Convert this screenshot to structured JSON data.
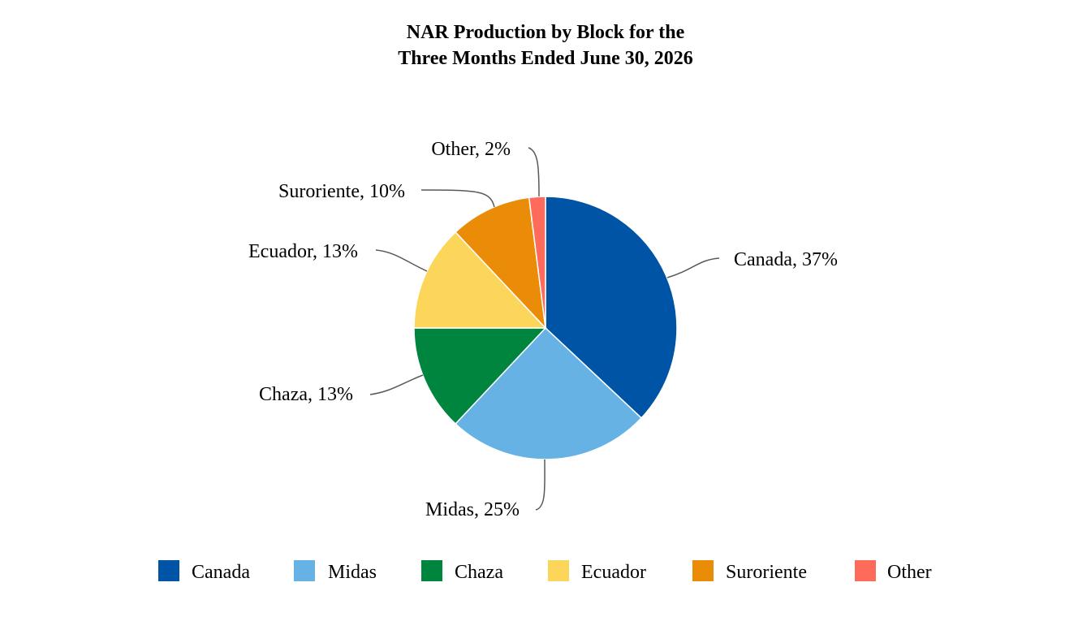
{
  "chart_data": {
    "type": "pie",
    "title": [
      "NAR Production by Block for the",
      "Three Months Ended June 30, 2026"
    ],
    "categories": [
      "Canada",
      "Midas",
      "Chaza",
      "Ecuador",
      "Suroriente",
      "Other"
    ],
    "values": [
      37,
      25,
      13,
      13,
      10,
      2
    ],
    "labels": [
      "Canada, 37%",
      "Midas, 25%",
      "Chaza, 13%",
      "Ecuador, 13%",
      "Suroriente, 10%",
      "Other, 2%"
    ],
    "colors": [
      "#0054A6",
      "#66B2E4",
      "#00853F",
      "#FCD65A",
      "#EB8C09",
      "#FF6B5B"
    ],
    "legend_position": "bottom",
    "start": "12 o'clock",
    "direction": "clockwise"
  }
}
